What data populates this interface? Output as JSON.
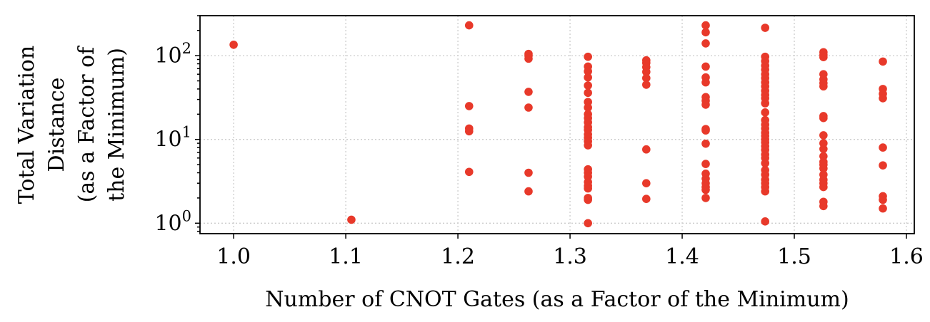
{
  "chart_data": {
    "type": "scatter",
    "xlabel": "Number of CNOT Gates (as a Factor of the Minimum)",
    "ylabel_lines": [
      "Total Variation",
      "Distance",
      "(as a Factor of",
      "the Minimum)"
    ],
    "xlim": [
      0.97,
      1.607
    ],
    "ylim": [
      0.75,
      300
    ],
    "yscale": "log",
    "grid": true,
    "marker_color": "#e8392a",
    "x_ticks": [
      {
        "value": 1.0,
        "label": "1.0"
      },
      {
        "value": 1.1,
        "label": "1.1"
      },
      {
        "value": 1.2,
        "label": "1.2"
      },
      {
        "value": 1.3,
        "label": "1.3"
      },
      {
        "value": 1.4,
        "label": "1.4"
      },
      {
        "value": 1.5,
        "label": "1.5"
      },
      {
        "value": 1.6,
        "label": "1.6"
      }
    ],
    "y_ticks": [
      {
        "value": 1,
        "base": "10",
        "exp": "0"
      },
      {
        "value": 10,
        "base": "10",
        "exp": "1"
      },
      {
        "value": 100,
        "base": "10",
        "exp": "2"
      }
    ],
    "series": [
      {
        "x": 1.0,
        "y": [
          135
        ]
      },
      {
        "x": 1.105,
        "y": [
          1.1
        ]
      },
      {
        "x": 1.21,
        "y": [
          230,
          25,
          13.5,
          12.5,
          4.1
        ]
      },
      {
        "x": 1.263,
        "y": [
          105,
          100,
          92,
          37,
          24,
          4.0,
          2.4
        ]
      },
      {
        "x": 1.316,
        "y": [
          97,
          74,
          65,
          55,
          44,
          36,
          28,
          24,
          20,
          18,
          16,
          14,
          13,
          11.5,
          10.5,
          9.5,
          8.5,
          4.4,
          4.0,
          3.6,
          3.1,
          2.8,
          2.6,
          2.0,
          1.9,
          1.0
        ]
      },
      {
        "x": 1.368,
        "y": [
          88,
          82,
          73,
          64,
          54,
          45,
          7.6,
          3.0,
          1.95
        ]
      },
      {
        "x": 1.421,
        "y": [
          230,
          190,
          140,
          74,
          55,
          48,
          32,
          29,
          26,
          13.3,
          12.8,
          8.9,
          5.1,
          3.9,
          3.4,
          3.0,
          2.7,
          2.5,
          2.0
        ]
      },
      {
        "x": 1.474,
        "y": [
          215,
          97,
          86,
          76,
          68,
          60,
          54,
          48,
          43,
          38,
          34,
          31,
          27,
          21,
          17,
          15,
          13.5,
          12,
          11,
          10,
          9.2,
          8.3,
          7.5,
          6.6,
          6.0,
          5.2,
          4.3,
          3.8,
          3.3,
          3.0,
          2.7,
          2.4,
          1.05
        ]
      },
      {
        "x": 1.526,
        "y": [
          110,
          102,
          96,
          60,
          52,
          47,
          43,
          19,
          18,
          11.2,
          9.0,
          7.7,
          6.3,
          5.4,
          5.0,
          4.5,
          3.8,
          3.3,
          3.0,
          2.7,
          1.8,
          1.6
        ]
      },
      {
        "x": 1.579,
        "y": [
          85,
          40,
          35,
          31,
          8.0,
          4.9,
          2.1,
          1.9,
          1.5
        ]
      }
    ]
  }
}
